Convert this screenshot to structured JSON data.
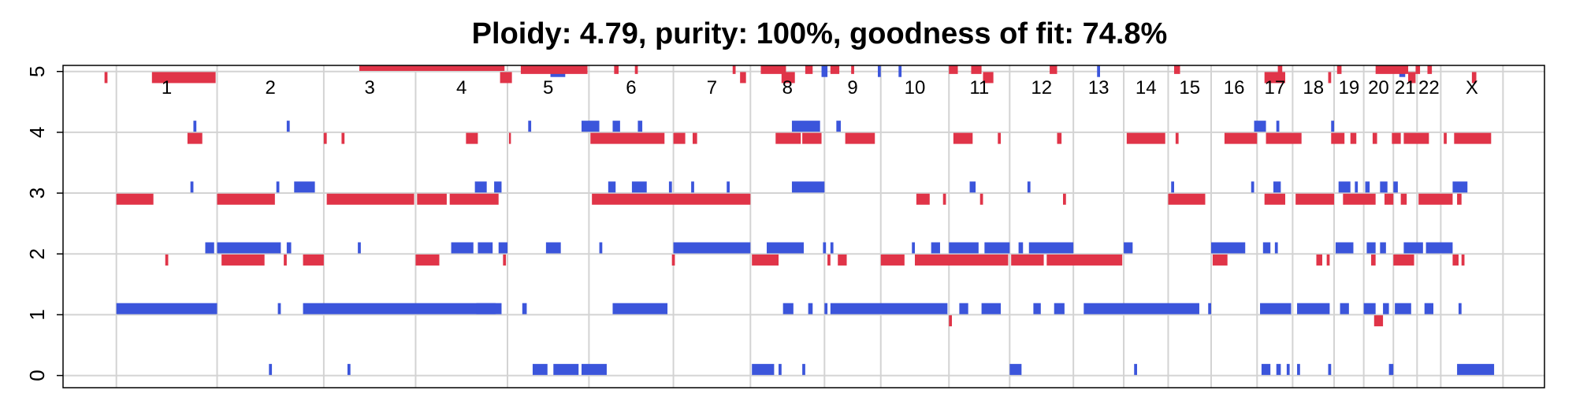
{
  "chart_data": {
    "type": "scatter",
    "title": "Ploidy: 4.79, purity: 100%, goodness of fit: 74.8%",
    "xlabel": "",
    "ylabel": "",
    "ylim": [
      -0.2,
      5.1
    ],
    "xlim": [
      0,
      100
    ],
    "y_ticks": [
      "0",
      "1",
      "2",
      "3",
      "4",
      "5"
    ],
    "grid": true,
    "chromosomes": [
      {
        "label": "1",
        "start": 3.6,
        "end": 10.4
      },
      {
        "label": "2",
        "start": 10.4,
        "end": 17.6
      },
      {
        "label": "3",
        "start": 17.6,
        "end": 23.8
      },
      {
        "label": "4",
        "start": 23.8,
        "end": 30.0
      },
      {
        "label": "5",
        "start": 30.0,
        "end": 35.5
      },
      {
        "label": "6",
        "start": 35.5,
        "end": 41.2
      },
      {
        "label": "7",
        "start": 41.2,
        "end": 46.4
      },
      {
        "label": "8",
        "start": 46.4,
        "end": 51.4
      },
      {
        "label": "9",
        "start": 51.4,
        "end": 55.2
      },
      {
        "label": "10",
        "start": 55.2,
        "end": 59.8
      },
      {
        "label": "11",
        "start": 59.8,
        "end": 63.9
      },
      {
        "label": "12",
        "start": 63.9,
        "end": 68.2
      },
      {
        "label": "13",
        "start": 68.2,
        "end": 71.6
      },
      {
        "label": "14",
        "start": 71.6,
        "end": 74.6
      },
      {
        "label": "15",
        "start": 74.6,
        "end": 77.5
      },
      {
        "label": "16",
        "start": 77.5,
        "end": 80.6
      },
      {
        "label": "17",
        "start": 80.6,
        "end": 83.0
      },
      {
        "label": "18",
        "start": 83.0,
        "end": 85.8
      },
      {
        "label": "19",
        "start": 85.8,
        "end": 87.8
      },
      {
        "label": "20",
        "start": 87.8,
        "end": 89.8
      },
      {
        "label": "21",
        "start": 89.8,
        "end": 91.4
      },
      {
        "label": "22",
        "start": 91.4,
        "end": 93.0
      },
      {
        "label": "X",
        "start": 93.0,
        "end": 97.2
      }
    ],
    "series": [
      {
        "color": "#3b55db",
        "segments": [
          [
            3.6,
            10.4,
            1.1
          ],
          [
            14.5,
            14.7,
            1.1
          ],
          [
            16.2,
            29.2,
            1.1
          ],
          [
            27.9,
            29.6,
            1.1
          ],
          [
            31.0,
            31.3,
            1.1
          ],
          [
            37.1,
            40.8,
            1.1
          ],
          [
            48.6,
            49.3,
            1.1
          ],
          [
            50.3,
            50.6,
            1.1
          ],
          [
            51.4,
            51.6,
            1.1
          ],
          [
            51.8,
            59.7,
            1.1
          ],
          [
            60.5,
            61.1,
            1.1
          ],
          [
            62.0,
            63.3,
            1.1
          ],
          [
            65.5,
            66.0,
            1.1
          ],
          [
            66.9,
            67.6,
            1.1
          ],
          [
            68.9,
            76.7,
            1.1
          ],
          [
            77.3,
            77.5,
            1.1
          ],
          [
            80.8,
            82.9,
            1.1
          ],
          [
            83.3,
            85.5,
            1.1
          ],
          [
            86.2,
            86.8,
            1.1
          ],
          [
            87.8,
            88.6,
            1.1
          ],
          [
            89.1,
            89.5,
            1.1
          ],
          [
            89.9,
            91.0,
            1.1
          ],
          [
            91.9,
            92.5,
            1.1
          ],
          [
            94.2,
            94.4,
            1.1
          ],
          [
            9.6,
            10.2,
            2.1
          ],
          [
            10.4,
            14.7,
            2.1
          ],
          [
            15.1,
            15.4,
            2.1
          ],
          [
            19.9,
            20.1,
            2.1
          ],
          [
            26.2,
            27.7,
            2.1
          ],
          [
            28.0,
            29.0,
            2.1
          ],
          [
            29.4,
            30.0,
            2.1
          ],
          [
            32.6,
            33.6,
            2.1
          ],
          [
            36.2,
            36.4,
            2.1
          ],
          [
            41.2,
            46.4,
            2.1
          ],
          [
            47.5,
            50.0,
            2.1
          ],
          [
            51.3,
            51.5,
            2.1
          ],
          [
            51.8,
            52.0,
            2.1
          ],
          [
            57.3,
            57.5,
            2.1
          ],
          [
            58.6,
            59.2,
            2.1
          ],
          [
            59.8,
            61.8,
            2.1
          ],
          [
            62.2,
            63.9,
            2.1
          ],
          [
            64.5,
            64.8,
            2.1
          ],
          [
            65.2,
            68.2,
            2.1
          ],
          [
            71.6,
            72.2,
            2.1
          ],
          [
            77.5,
            79.8,
            2.1
          ],
          [
            81.0,
            81.5,
            2.1
          ],
          [
            81.8,
            82.0,
            2.1
          ],
          [
            85.9,
            87.1,
            2.1
          ],
          [
            88.0,
            88.6,
            2.1
          ],
          [
            88.9,
            89.3,
            2.1
          ],
          [
            90.5,
            91.8,
            2.1
          ],
          [
            92.0,
            93.8,
            2.1
          ],
          [
            8.6,
            8.8,
            3.1
          ],
          [
            14.4,
            14.6,
            3.1
          ],
          [
            15.6,
            17.0,
            3.1
          ],
          [
            27.8,
            28.6,
            3.1
          ],
          [
            29.1,
            29.6,
            3.1
          ],
          [
            36.8,
            37.3,
            3.1
          ],
          [
            38.4,
            39.4,
            3.1
          ],
          [
            40.9,
            41.1,
            3.1
          ],
          [
            42.4,
            42.6,
            3.1
          ],
          [
            44.8,
            45.0,
            3.1
          ],
          [
            49.2,
            51.4,
            3.1
          ],
          [
            61.2,
            61.6,
            3.1
          ],
          [
            65.1,
            65.3,
            3.1
          ],
          [
            74.8,
            75.0,
            3.1
          ],
          [
            80.2,
            80.4,
            3.1
          ],
          [
            81.7,
            82.2,
            3.1
          ],
          [
            86.1,
            86.9,
            3.1
          ],
          [
            87.2,
            87.4,
            3.1
          ],
          [
            87.9,
            88.2,
            3.1
          ],
          [
            88.9,
            89.4,
            3.1
          ],
          [
            89.8,
            90.1,
            3.1
          ],
          [
            93.8,
            94.8,
            3.1
          ],
          [
            8.8,
            9.0,
            4.1
          ],
          [
            15.1,
            15.3,
            4.1
          ],
          [
            31.4,
            31.6,
            4.1
          ],
          [
            35.0,
            36.2,
            4.1
          ],
          [
            37.1,
            37.6,
            4.1
          ],
          [
            38.8,
            39.1,
            4.1
          ],
          [
            49.2,
            51.1,
            4.1
          ],
          [
            52.2,
            52.5,
            4.1
          ],
          [
            80.4,
            81.2,
            4.1
          ],
          [
            81.9,
            82.1,
            4.1
          ],
          [
            85.6,
            85.8,
            4.1
          ],
          [
            13.9,
            14.1,
            0.1
          ],
          [
            19.2,
            19.4,
            0.1
          ],
          [
            31.7,
            32.7,
            0.1
          ],
          [
            33.1,
            34.8,
            0.1
          ],
          [
            35.0,
            36.7,
            0.1
          ],
          [
            46.5,
            48.0,
            0.1
          ],
          [
            48.3,
            48.5,
            0.1
          ],
          [
            49.9,
            50.1,
            0.1
          ],
          [
            63.9,
            64.7,
            0.1
          ],
          [
            72.3,
            72.5,
            0.1
          ],
          [
            80.9,
            81.5,
            0.1
          ],
          [
            81.9,
            82.2,
            0.1
          ],
          [
            82.6,
            82.8,
            0.1
          ],
          [
            83.3,
            83.5,
            0.1
          ],
          [
            85.4,
            85.6,
            0.1
          ],
          [
            89.5,
            89.8,
            0.1
          ],
          [
            94.1,
            96.6,
            0.1
          ],
          [
            32.9,
            33.9,
            5.0
          ],
          [
            51.2,
            51.6,
            5.0
          ],
          [
            55.0,
            55.2,
            5.0
          ],
          [
            56.4,
            56.6,
            5.0
          ],
          [
            69.8,
            70.0,
            5.0
          ],
          [
            90.2,
            90.6,
            5.0
          ]
        ]
      },
      {
        "color": "#e03448",
        "segments": [
          [
            6.0,
            10.3,
            4.9
          ],
          [
            3.6,
            6.1,
            2.9
          ],
          [
            10.4,
            14.3,
            2.9
          ],
          [
            17.8,
            23.7,
            2.9
          ],
          [
            23.9,
            25.9,
            2.9
          ],
          [
            26.1,
            29.4,
            2.9
          ],
          [
            35.7,
            46.4,
            2.9
          ],
          [
            57.6,
            58.5,
            2.9
          ],
          [
            59.4,
            59.6,
            2.9
          ],
          [
            61.9,
            62.1,
            2.9
          ],
          [
            67.5,
            67.7,
            2.9
          ],
          [
            74.6,
            77.1,
            2.9
          ],
          [
            81.1,
            82.5,
            2.9
          ],
          [
            83.2,
            85.8,
            2.9
          ],
          [
            86.4,
            88.6,
            2.9
          ],
          [
            89.2,
            89.8,
            2.9
          ],
          [
            90.3,
            90.7,
            2.9
          ],
          [
            91.5,
            93.8,
            2.9
          ],
          [
            94.1,
            94.4,
            2.9
          ],
          [
            6.9,
            7.1,
            1.9
          ],
          [
            10.7,
            13.6,
            1.9
          ],
          [
            14.9,
            15.1,
            1.9
          ],
          [
            16.2,
            17.6,
            1.9
          ],
          [
            23.8,
            25.4,
            1.9
          ],
          [
            29.7,
            29.9,
            1.9
          ],
          [
            41.1,
            41.3,
            1.9
          ],
          [
            46.5,
            48.3,
            1.9
          ],
          [
            51.6,
            51.8,
            1.9
          ],
          [
            52.3,
            52.9,
            1.9
          ],
          [
            55.2,
            56.8,
            1.9
          ],
          [
            57.5,
            63.8,
            1.9
          ],
          [
            64.0,
            66.2,
            1.9
          ],
          [
            66.4,
            71.5,
            1.9
          ],
          [
            77.6,
            78.6,
            1.9
          ],
          [
            84.6,
            85.0,
            1.9
          ],
          [
            85.3,
            85.5,
            1.9
          ],
          [
            88.3,
            88.6,
            1.9
          ],
          [
            89.8,
            91.2,
            1.9
          ],
          [
            93.8,
            94.2,
            1.9
          ],
          [
            94.4,
            94.6,
            1.9
          ],
          [
            2.8,
            3.0,
            4.9
          ],
          [
            8.4,
            9.4,
            3.9
          ],
          [
            17.6,
            17.8,
            3.9
          ],
          [
            18.8,
            19.0,
            3.9
          ],
          [
            27.2,
            28.0,
            3.9
          ],
          [
            30.1,
            30.2,
            3.9
          ],
          [
            35.6,
            40.6,
            3.9
          ],
          [
            41.2,
            42.0,
            3.9
          ],
          [
            42.5,
            42.8,
            3.9
          ],
          [
            48.1,
            49.8,
            3.9
          ],
          [
            49.9,
            51.2,
            3.9
          ],
          [
            52.8,
            54.8,
            3.9
          ],
          [
            60.1,
            61.4,
            3.9
          ],
          [
            63.1,
            63.3,
            3.9
          ],
          [
            67.1,
            67.4,
            3.9
          ],
          [
            71.8,
            74.4,
            3.9
          ],
          [
            75.1,
            75.3,
            3.9
          ],
          [
            78.4,
            80.6,
            3.9
          ],
          [
            81.2,
            83.6,
            3.9
          ],
          [
            85.6,
            86.5,
            3.9
          ],
          [
            86.9,
            87.3,
            3.9
          ],
          [
            88.4,
            88.7,
            3.9
          ],
          [
            89.7,
            90.3,
            3.9
          ],
          [
            90.5,
            92.2,
            3.9
          ],
          [
            93.2,
            93.4,
            3.9
          ],
          [
            93.9,
            96.4,
            3.9
          ],
          [
            59.8,
            60.0,
            0.9
          ],
          [
            88.5,
            89.1,
            0.9
          ],
          [
            20.0,
            29.8,
            5.1
          ],
          [
            30.9,
            35.4,
            5.05
          ],
          [
            37.2,
            37.5,
            5.05
          ],
          [
            38.6,
            38.8,
            5.05
          ],
          [
            45.2,
            45.4,
            5.05
          ],
          [
            47.1,
            48.8,
            5.05
          ],
          [
            50.1,
            50.6,
            5.05
          ],
          [
            51.8,
            52.4,
            5.05
          ],
          [
            53.2,
            53.4,
            5.05
          ],
          [
            59.8,
            60.4,
            5.05
          ],
          [
            61.3,
            62.0,
            5.05
          ],
          [
            66.6,
            67.1,
            5.05
          ],
          [
            75.0,
            75.4,
            5.05
          ],
          [
            82.0,
            82.3,
            5.05
          ],
          [
            86.0,
            86.3,
            5.05
          ],
          [
            88.6,
            90.8,
            5.05
          ],
          [
            91.3,
            91.6,
            5.05
          ],
          [
            92.1,
            92.4,
            5.05
          ],
          [
            29.5,
            30.3,
            4.9
          ],
          [
            45.7,
            46.1,
            4.9
          ],
          [
            48.5,
            49.4,
            4.9
          ],
          [
            62.1,
            62.8,
            4.9
          ],
          [
            81.1,
            82.5,
            4.9
          ],
          [
            85.4,
            85.6,
            4.9
          ],
          [
            90.8,
            91.3,
            4.9
          ],
          [
            95.1,
            95.4,
            4.9
          ]
        ]
      }
    ]
  }
}
